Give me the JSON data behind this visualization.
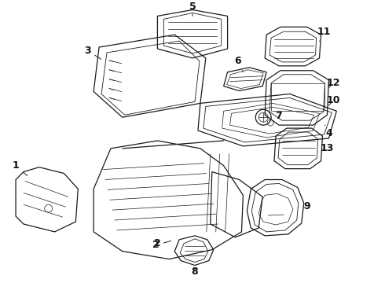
{
  "background_color": "#ffffff",
  "line_color": "#1a1a1a",
  "label_color": "#111111",
  "figsize": [
    4.9,
    3.6
  ],
  "dpi": 100,
  "lw": 0.9
}
